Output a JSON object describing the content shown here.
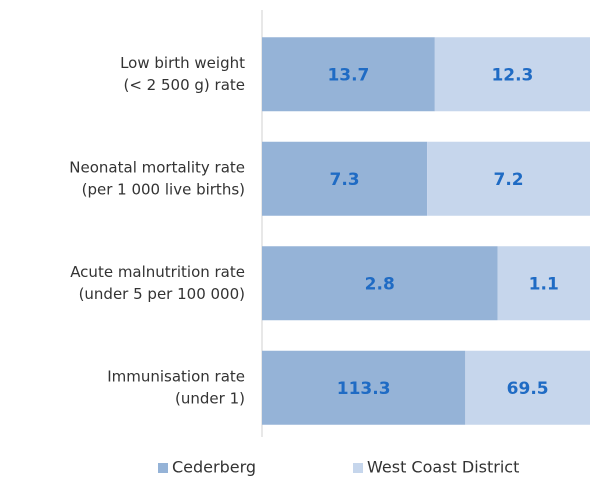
{
  "chart_data": {
    "type": "bar",
    "orientation": "horizontal",
    "stacked": "percent",
    "categories": [
      [
        "Low birth weight",
        "(< 2 500 g) rate"
      ],
      [
        "Neonatal mortality rate",
        "(per 1 000 live births)"
      ],
      [
        "Acute malnutrition rate",
        "(under 5 per 100 000)"
      ],
      [
        "Immunisation rate",
        "(under 1)"
      ]
    ],
    "series": [
      {
        "name": "Cederberg",
        "color": "#95b3d7",
        "values": [
          13.7,
          7.3,
          2.8,
          113.3
        ]
      },
      {
        "name": "West Coast District",
        "color": "#c6d6ec",
        "values": [
          12.3,
          7.2,
          1.1,
          69.5
        ]
      }
    ],
    "legend": "bottom"
  }
}
